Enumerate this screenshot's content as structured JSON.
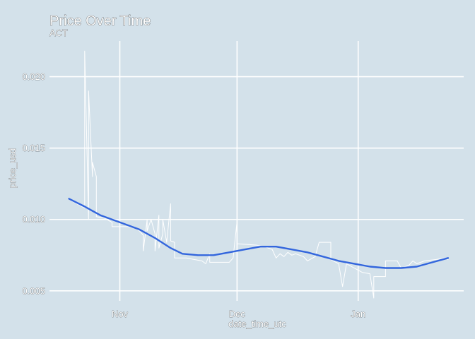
{
  "chart_data": {
    "type": "line",
    "title": "Price Over Time",
    "subtitle": "ACT",
    "xlabel": "date_time_utc",
    "ylabel": "price_usd",
    "x_ticks": [
      {
        "label": "Nov",
        "date": "2024-11-01"
      },
      {
        "label": "Dec",
        "date": "2024-12-01"
      },
      {
        "label": "Jan",
        "date": "2025-01-01"
      }
    ],
    "y_ticks": [
      {
        "label": "0.005",
        "value": 0.005
      },
      {
        "label": "0.010",
        "value": 0.01
      },
      {
        "label": "0.015",
        "value": 0.015
      },
      {
        "label": "0.020",
        "value": 0.02
      }
    ],
    "xlim": [
      "2024-10-14",
      "2025-01-28"
    ],
    "ylim": [
      0.0043,
      0.0225
    ],
    "grid": true,
    "colors": {
      "background": "#d3e1ea",
      "grid": "#ffffff",
      "price_line": "#ffffff",
      "trend_line": "#3366dd"
    },
    "series": [
      {
        "kind": "price",
        "color": "#ffffff",
        "points": [
          [
            "2024-10-19",
            0.0114
          ],
          [
            "2024-10-21",
            0.0111
          ],
          [
            "2024-10-23",
            0.0108
          ],
          [
            "2024-10-23",
            0.0218
          ],
          [
            "2024-10-24",
            0.01
          ],
          [
            "2024-10-24",
            0.019
          ],
          [
            "2024-10-25",
            0.013
          ],
          [
            "2024-10-25",
            0.014
          ],
          [
            "2024-10-26",
            0.013
          ],
          [
            "2024-10-26",
            0.0102
          ],
          [
            "2024-10-28",
            0.0101
          ],
          [
            "2024-10-30",
            0.0098
          ],
          [
            "2024-10-30",
            0.0095
          ],
          [
            "2024-11-03",
            0.0095
          ],
          [
            "2024-11-05",
            0.0094
          ],
          [
            "2024-11-06",
            0.0092
          ],
          [
            "2024-11-07",
            0.0089
          ],
          [
            "2024-11-07",
            0.0078
          ],
          [
            "2024-11-08",
            0.01
          ],
          [
            "2024-11-08",
            0.0092
          ],
          [
            "2024-11-09",
            0.01
          ],
          [
            "2024-11-10",
            0.009
          ],
          [
            "2024-11-10",
            0.0078
          ],
          [
            "2024-11-11",
            0.0103
          ],
          [
            "2024-11-11",
            0.008
          ],
          [
            "2024-11-12",
            0.009
          ],
          [
            "2024-11-12",
            0.01
          ],
          [
            "2024-11-13",
            0.0084
          ],
          [
            "2024-11-14",
            0.0111
          ],
          [
            "2024-11-14",
            0.0085
          ],
          [
            "2024-11-15",
            0.0084
          ],
          [
            "2024-11-15",
            0.0073
          ],
          [
            "2024-11-18",
            0.0073
          ],
          [
            "2024-11-20",
            0.0072
          ],
          [
            "2024-11-22",
            0.0071
          ],
          [
            "2024-11-23",
            0.0069
          ],
          [
            "2024-11-24",
            0.0076
          ],
          [
            "2024-11-24",
            0.007
          ],
          [
            "2024-11-29",
            0.007
          ],
          [
            "2024-11-30",
            0.0073
          ],
          [
            "2024-12-01",
            0.0099
          ],
          [
            "2024-12-01",
            0.0083
          ],
          [
            "2024-12-06",
            0.0082
          ],
          [
            "2024-12-08",
            0.0081
          ],
          [
            "2024-12-10",
            0.0079
          ],
          [
            "2024-12-11",
            0.0073
          ],
          [
            "2024-12-12",
            0.0076
          ],
          [
            "2024-12-13",
            0.0074
          ],
          [
            "2024-12-14",
            0.0077
          ],
          [
            "2024-12-15",
            0.0075
          ],
          [
            "2024-12-16",
            0.0076
          ],
          [
            "2024-12-18",
            0.0074
          ],
          [
            "2024-12-19",
            0.0071
          ],
          [
            "2024-12-21",
            0.0074
          ],
          [
            "2024-12-22",
            0.0084
          ],
          [
            "2024-12-25",
            0.0084
          ],
          [
            "2024-12-25",
            0.0072
          ],
          [
            "2024-12-27",
            0.0069
          ],
          [
            "2024-12-28",
            0.0053
          ],
          [
            "2024-12-29",
            0.0069
          ],
          [
            "2024-12-31",
            0.0066
          ],
          [
            "2025-01-02",
            0.0063
          ],
          [
            "2025-01-04",
            0.0062
          ],
          [
            "2025-01-05",
            0.0045
          ],
          [
            "2025-01-05",
            0.006
          ],
          [
            "2025-01-08",
            0.006
          ],
          [
            "2025-01-08",
            0.0071
          ],
          [
            "2025-01-11",
            0.0071
          ],
          [
            "2025-01-12",
            0.0066
          ],
          [
            "2025-01-14",
            0.0068
          ],
          [
            "2025-01-15",
            0.0071
          ],
          [
            "2025-01-16",
            0.0069
          ],
          [
            "2025-01-18",
            0.0071
          ],
          [
            "2025-01-21",
            0.0072
          ],
          [
            "2025-01-23",
            0.0073
          ],
          [
            "2025-01-24",
            0.0072
          ]
        ]
      },
      {
        "kind": "smooth-trend",
        "color": "#3366dd",
        "points": [
          [
            "2024-10-19",
            0.01145
          ],
          [
            "2024-10-23",
            0.0109
          ],
          [
            "2024-10-27",
            0.0103
          ],
          [
            "2024-11-01",
            0.0098
          ],
          [
            "2024-11-06",
            0.0093
          ],
          [
            "2024-11-10",
            0.0087
          ],
          [
            "2024-11-14",
            0.008
          ],
          [
            "2024-11-17",
            0.0076
          ],
          [
            "2024-11-21",
            0.0075
          ],
          [
            "2024-11-25",
            0.0075
          ],
          [
            "2024-11-29",
            0.0077
          ],
          [
            "2024-12-03",
            0.0079
          ],
          [
            "2024-12-07",
            0.0081
          ],
          [
            "2024-12-11",
            0.0081
          ],
          [
            "2024-12-15",
            0.0079
          ],
          [
            "2024-12-19",
            0.0077
          ],
          [
            "2024-12-23",
            0.0074
          ],
          [
            "2024-12-27",
            0.0071
          ],
          [
            "2024-12-31",
            0.0069
          ],
          [
            "2025-01-04",
            0.0067
          ],
          [
            "2025-01-08",
            0.0066
          ],
          [
            "2025-01-12",
            0.0066
          ],
          [
            "2025-01-16",
            0.0067
          ],
          [
            "2025-01-20",
            0.007
          ],
          [
            "2025-01-24",
            0.0073
          ]
        ]
      }
    ]
  }
}
